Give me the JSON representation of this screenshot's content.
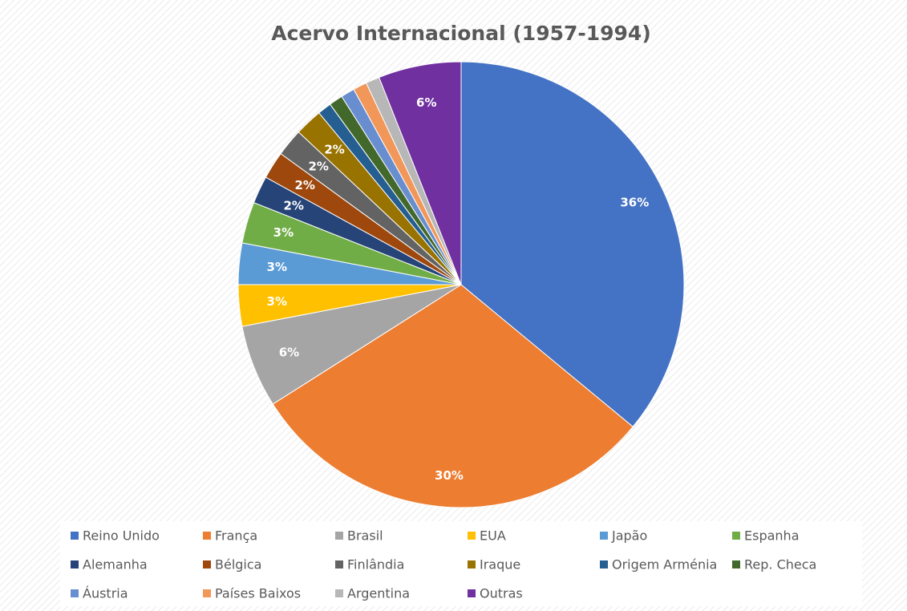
{
  "chart_data": {
    "type": "pie",
    "title": "Acervo Internacional (1957-1994)",
    "categories": [
      "Reino Unido",
      "França",
      "Brasil",
      "EUA",
      "Japão",
      "Espanha",
      "Alemanha",
      "Bélgica",
      "Finlândia",
      "Iraque",
      "Origem Arménia",
      "Rep. Checa",
      "Áustria",
      "Países Baixos",
      "Argentina",
      "Outras"
    ],
    "values": [
      36,
      30,
      6,
      3,
      3,
      3,
      2,
      2,
      2,
      2,
      1,
      1,
      1,
      1,
      1,
      6
    ],
    "value_labels": [
      "36%",
      "30%",
      "6%",
      "3%",
      "3%",
      "3%",
      "2%",
      "2%",
      "2%",
      "2%",
      null,
      null,
      null,
      null,
      null,
      "6%"
    ],
    "colors": [
      "#4472c4",
      "#ed7d31",
      "#a5a5a5",
      "#ffc000",
      "#5b9bd5",
      "#70ad47",
      "#264478",
      "#9e480e",
      "#636363",
      "#997300",
      "#255e91",
      "#43682b",
      "#698ed0",
      "#f1975a",
      "#b7b7b7",
      "#7030a0"
    ],
    "legend": "bottom"
  }
}
